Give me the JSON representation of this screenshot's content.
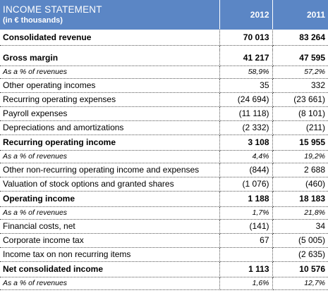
{
  "header": {
    "title": "INCOME STATEMENT",
    "subtitle": "(in € thousands)",
    "year_a": "2012",
    "year_b": "2011"
  },
  "rows": [
    {
      "label": "Consolidated revenue",
      "v2012": "70 013",
      "v2011": "83 264",
      "style": "bold"
    },
    {
      "label": "Gross margin",
      "v2012": "41 217",
      "v2011": "47 595",
      "style": "bold"
    },
    {
      "label": "As a % of revenues",
      "v2012": "58,9%",
      "v2011": "57,2%",
      "style": "pct"
    },
    {
      "label": "Other operating incomes",
      "v2012": "35",
      "v2011": "332",
      "style": "normal"
    },
    {
      "label": "Recurring operating expenses",
      "v2012": "(24 694)",
      "v2011": "(23 661)",
      "style": "normal"
    },
    {
      "label": "Payroll expenses",
      "v2012": "(11 118)",
      "v2011": "(8 101)",
      "style": "normal"
    },
    {
      "label": "Depreciations and amortizations",
      "v2012": "(2 332)",
      "v2011": "(211)",
      "style": "normal"
    },
    {
      "label": "Recurring operating income",
      "v2012": "3 108",
      "v2011": "15 955",
      "style": "bold"
    },
    {
      "label": "As a % of revenues",
      "v2012": "4,4%",
      "v2011": "19,2%",
      "style": "pct"
    },
    {
      "label": "Other non-recurring operating income and expenses",
      "v2012": "(844)",
      "v2011": "2 688",
      "style": "normal"
    },
    {
      "label": "Valuation of stock options and granted shares",
      "v2012": "(1 076)",
      "v2011": "(460)",
      "style": "normal"
    },
    {
      "label": "Operating income",
      "v2012": "1 188",
      "v2011": "18 183",
      "style": "bold"
    },
    {
      "label": "As a % of revenues",
      "v2012": "1,7%",
      "v2011": "21,8%",
      "style": "pct"
    },
    {
      "label": "Financial costs, net",
      "v2012": "(141)",
      "v2011": "34",
      "style": "normal"
    },
    {
      "label": "Corporate income tax",
      "v2012": "67",
      "v2011": "(5 005)",
      "style": "normal"
    },
    {
      "label": "Income tax on non recurring items",
      "v2012": "",
      "v2011": "(2 635)",
      "style": "normal"
    },
    {
      "label": "Net consolidated income",
      "v2012": "1 113",
      "v2011": "10 576",
      "style": "bold"
    },
    {
      "label": "As a % of revenues",
      "v2012": "1,6%",
      "v2011": "12,7%",
      "style": "pct"
    }
  ]
}
